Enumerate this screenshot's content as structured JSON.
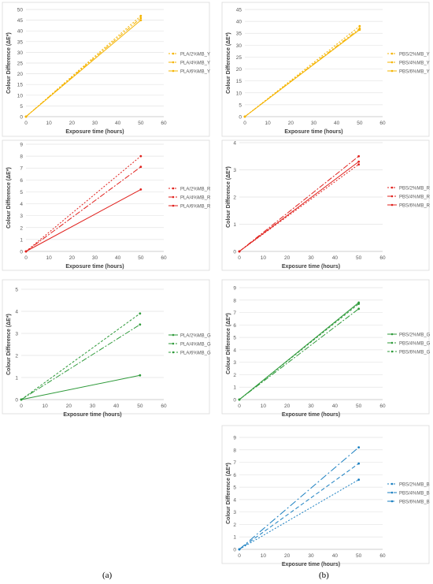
{
  "captions": {
    "left": "(a)",
    "right": "(b)"
  },
  "chart_data": [
    {
      "id": "pla_y",
      "type": "line",
      "xlabel": "Exposure time (hours)",
      "ylabel": "Colour Difference (ΔE*)",
      "xlim": [
        0,
        60
      ],
      "xticks": [
        0,
        10,
        20,
        30,
        40,
        50,
        60
      ],
      "ylim": [
        0,
        50
      ],
      "yticks": [
        0,
        5,
        10,
        15,
        20,
        25,
        30,
        35,
        40,
        45,
        50
      ],
      "grid": "horizontal",
      "legend": "right",
      "series": [
        {
          "name": "PLA/2%MB_Y",
          "color": "#f5b400",
          "dash": "2,2",
          "x": [
            0,
            50
          ],
          "y": [
            0,
            47
          ]
        },
        {
          "name": "PLA/4%MB_Y",
          "color": "#f5b400",
          "dash": "6,2,2,2",
          "x": [
            0,
            50
          ],
          "y": [
            0,
            46
          ]
        },
        {
          "name": "PLA/6%MB_Y",
          "color": "#f5b400",
          "dash": "",
          "x": [
            0,
            50
          ],
          "y": [
            0,
            45
          ]
        }
      ]
    },
    {
      "id": "pbs_y",
      "type": "line",
      "xlabel": "Exposure time (hours)",
      "ylabel": "Colour Difference (ΔE*)",
      "xlim": [
        0,
        60
      ],
      "xticks": [
        0,
        10,
        20,
        30,
        40,
        50,
        60
      ],
      "ylim": [
        0,
        45
      ],
      "yticks": [
        0,
        5,
        10,
        15,
        20,
        25,
        30,
        35,
        40,
        45
      ],
      "grid": "horizontal",
      "legend": "right",
      "series": [
        {
          "name": "PBS/2%MB_Y",
          "color": "#f5b400",
          "dash": "2,2",
          "x": [
            0,
            50
          ],
          "y": [
            0,
            38
          ]
        },
        {
          "name": "PBS/4%MB_Y",
          "color": "#f5b400",
          "dash": "6,2,2,2",
          "x": [
            0,
            50
          ],
          "y": [
            0,
            37
          ]
        },
        {
          "name": "PBS/6%MB_Y",
          "color": "#f5b400",
          "dash": "",
          "x": [
            0,
            50
          ],
          "y": [
            0,
            36.5
          ]
        }
      ]
    },
    {
      "id": "pla_r",
      "type": "line",
      "xlabel": "Exposure time (hours)",
      "ylabel": "Colour Difference (ΔE*)",
      "xlim": [
        0,
        60
      ],
      "xticks": [
        0,
        10,
        20,
        30,
        40,
        50,
        60
      ],
      "ylim": [
        0,
        9
      ],
      "yticks": [
        0,
        1,
        2,
        3,
        4,
        5,
        6,
        7,
        8,
        9
      ],
      "grid": "horizontal",
      "legend": "right",
      "series": [
        {
          "name": "PLA/2%MB_R",
          "color": "#e0201c",
          "dash": "2,2",
          "x": [
            0,
            50
          ],
          "y": [
            0,
            8.0
          ]
        },
        {
          "name": "PLA/4%MB_R",
          "color": "#e0201c",
          "dash": "7,2,2,2",
          "x": [
            0,
            50
          ],
          "y": [
            0,
            7.1
          ]
        },
        {
          "name": "PLA/6%MB_R",
          "color": "#e0201c",
          "dash": "",
          "x": [
            0,
            50
          ],
          "y": [
            0,
            5.2
          ]
        }
      ]
    },
    {
      "id": "pbs_r",
      "type": "line",
      "xlabel": "Exposure time (hours)",
      "ylabel": "Colour Difference (ΔE*)",
      "xlim": [
        0,
        60
      ],
      "xticks": [
        0,
        10,
        20,
        30,
        40,
        50,
        60
      ],
      "ylim": [
        0,
        4
      ],
      "yticks": [
        0,
        1,
        2,
        3,
        4
      ],
      "grid": "horizontal",
      "legend": "right",
      "series": [
        {
          "name": "PBS/2%MB_R",
          "color": "#e0201c",
          "dash": "2,2",
          "x": [
            0,
            50
          ],
          "y": [
            0,
            3.2
          ]
        },
        {
          "name": "PBS/4%MB_R",
          "color": "#e0201c",
          "dash": "7,2,2,2",
          "x": [
            0,
            50
          ],
          "y": [
            0,
            3.5
          ]
        },
        {
          "name": "PBS/6%MB_R",
          "color": "#e0201c",
          "dash": "",
          "x": [
            0,
            50
          ],
          "y": [
            0,
            3.3
          ]
        }
      ]
    },
    {
      "id": "pla_g",
      "type": "line",
      "xlabel": "Exposure time (hours)",
      "ylabel": "Colour Difference (ΔE*)",
      "xlim": [
        0,
        60
      ],
      "xticks": [
        0,
        10,
        20,
        30,
        40,
        50,
        60
      ],
      "ylim": [
        0,
        5
      ],
      "yticks": [
        0,
        1,
        2,
        3,
        4,
        5
      ],
      "grid": "horizontal",
      "legend": "right",
      "series": [
        {
          "name": "PLA/2%MB_G",
          "color": "#2e9a3a",
          "dash": "",
          "x": [
            0,
            50
          ],
          "y": [
            0,
            1.1
          ]
        },
        {
          "name": "PLA/4%MB_G",
          "color": "#2e9a3a",
          "dash": "7,2,2,2",
          "x": [
            0,
            50
          ],
          "y": [
            0,
            3.4
          ]
        },
        {
          "name": "PLA/6%MB_G",
          "color": "#2e9a3a",
          "dash": "3,2",
          "x": [
            0,
            50
          ],
          "y": [
            0,
            3.9
          ]
        }
      ]
    },
    {
      "id": "pbs_g",
      "type": "line",
      "xlabel": "Exposure time (hours)",
      "ylabel": "Colour Difference (ΔE*)",
      "xlim": [
        0,
        60
      ],
      "xticks": [
        0,
        10,
        20,
        30,
        40,
        50,
        60
      ],
      "ylim": [
        0,
        9
      ],
      "yticks": [
        0,
        1,
        2,
        3,
        4,
        5,
        6,
        7,
        8,
        9
      ],
      "grid": "horizontal",
      "legend": "right",
      "series": [
        {
          "name": "PBS/2%MB_G",
          "color": "#2e9a3a",
          "dash": "",
          "x": [
            0,
            50
          ],
          "y": [
            0,
            7.8
          ]
        },
        {
          "name": "PBS/4%MB_G",
          "color": "#2e9a3a",
          "dash": "7,2,2,2",
          "x": [
            0,
            50
          ],
          "y": [
            0,
            7.3
          ]
        },
        {
          "name": "PBS/6%MB_G",
          "color": "#2e9a3a",
          "dash": "3,2",
          "x": [
            0,
            50
          ],
          "y": [
            0,
            7.7
          ]
        }
      ]
    },
    {
      "id": "pbs_b",
      "type": "line",
      "xlabel": "Exposure time (hours)",
      "ylabel": "Colour Difference (ΔE*)",
      "xlim": [
        0,
        60
      ],
      "xticks": [
        0,
        10,
        20,
        30,
        40,
        50,
        60
      ],
      "ylim": [
        0,
        9
      ],
      "yticks": [
        0,
        1,
        2,
        3,
        4,
        5,
        6,
        7,
        8,
        9
      ],
      "grid": "horizontal",
      "legend": "right",
      "series": [
        {
          "name": "PBS/2%MB_B",
          "color": "#1a7fc1",
          "dash": "2,2",
          "x": [
            0,
            50
          ],
          "y": [
            0,
            5.6
          ]
        },
        {
          "name": "PBS/4%MB_B",
          "color": "#1a7fc1",
          "dash": "5,3",
          "x": [
            0,
            50
          ],
          "y": [
            0,
            6.9
          ]
        },
        {
          "name": "PBS/6%MB_B",
          "color": "#1a7fc1",
          "dash": "9,3,2,3",
          "x": [
            0,
            50
          ],
          "y": [
            0,
            8.2
          ]
        }
      ]
    }
  ]
}
